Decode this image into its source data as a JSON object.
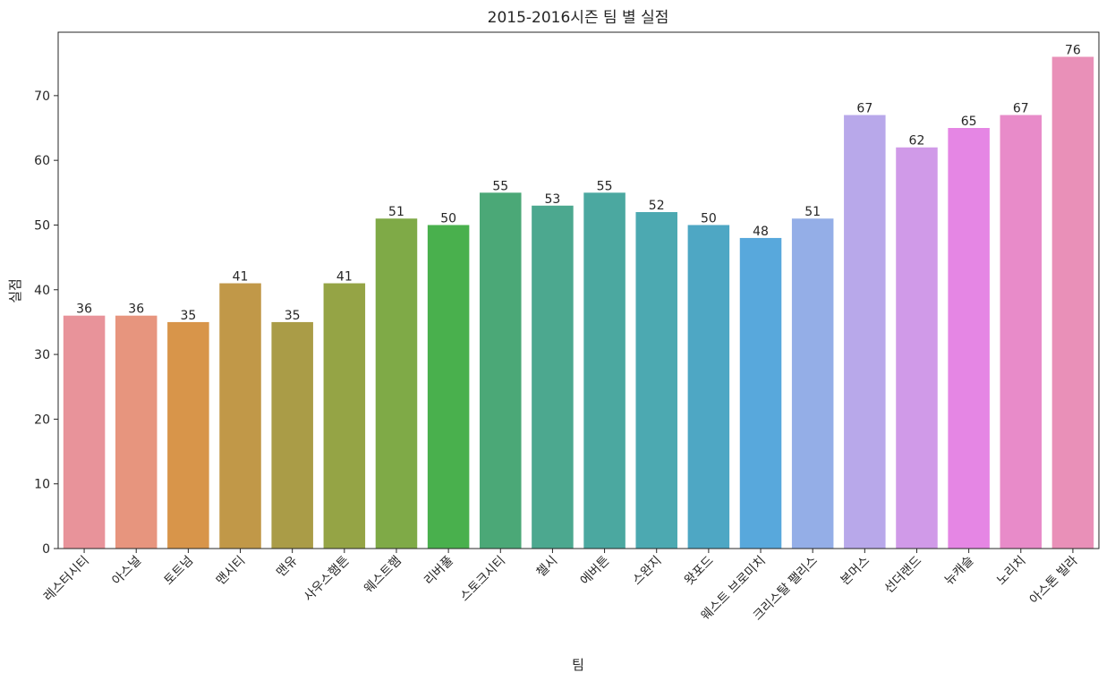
{
  "chart_data": {
    "type": "bar",
    "title": "2015-2016시즌 팀 별 실점",
    "xlabel": "팀",
    "ylabel": "실점",
    "categories": [
      "레스터시티",
      "아스널",
      "토트넘",
      "맨시티",
      "맨유",
      "사우스햄튼",
      "웨스트햄",
      "리버풀",
      "스토크시티",
      "첼시",
      "에버튼",
      "스완지",
      "왓포드",
      "웨스트 브로미치",
      "크리스탈 팰리스",
      "본머스",
      "선더랜드",
      "뉴캐슬",
      "노리치",
      "아스톤 빌라"
    ],
    "values": [
      36,
      36,
      35,
      41,
      35,
      41,
      51,
      50,
      55,
      53,
      55,
      52,
      50,
      48,
      51,
      67,
      62,
      65,
      67,
      76
    ],
    "colors": [
      "#e8939a",
      "#e7957e",
      "#d8954a",
      "#c19848",
      "#aa9c47",
      "#95a445",
      "#7faa47",
      "#49b04d",
      "#4ba877",
      "#4ca88f",
      "#4ba8a0",
      "#4ca9b1",
      "#4ea7c4",
      "#58a8dc",
      "#94aee7",
      "#b8a8ea",
      "#d09ae8",
      "#e586e4",
      "#e88bc9",
      "#e990b8"
    ],
    "yticks": [
      0,
      10,
      20,
      30,
      40,
      50,
      60,
      70
    ],
    "ylim": [
      0,
      79.8
    ],
    "grid": false,
    "legend": "none"
  }
}
